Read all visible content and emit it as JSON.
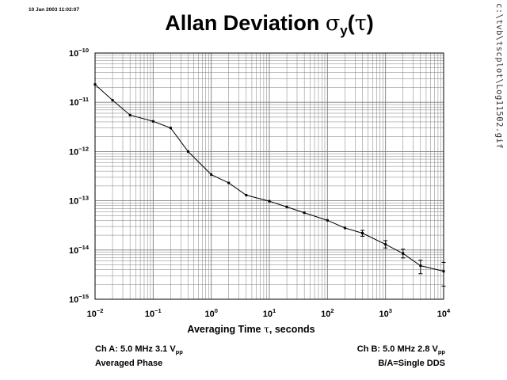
{
  "header": {
    "timestamp": "10 Jan 2003 11:02:07",
    "side_path": "c:\\tvb\\tscplot\\Log11502.gif"
  },
  "title": {
    "main": "Allan Deviation ",
    "symbol": "σ",
    "subscript": "y",
    "paren_open": "(",
    "tau": "τ",
    "paren_close": ")"
  },
  "chart_data": {
    "type": "line",
    "title": "Allan Deviation σy(τ)",
    "xlabel": "Averaging Time τ, seconds",
    "ylabel": "",
    "xscale": "log",
    "yscale": "log",
    "xlim": [
      0.01,
      10000
    ],
    "ylim": [
      1e-15,
      1e-10
    ],
    "grid": true,
    "x_ticks": [
      {
        "base": "10",
        "exp": "−2",
        "value": 0.01
      },
      {
        "base": "10",
        "exp": "−1",
        "value": 0.1
      },
      {
        "base": "10",
        "exp": "0",
        "value": 1
      },
      {
        "base": "10",
        "exp": "1",
        "value": 10
      },
      {
        "base": "10",
        "exp": "2",
        "value": 100
      },
      {
        "base": "10",
        "exp": "3",
        "value": 1000
      },
      {
        "base": "10",
        "exp": "4",
        "value": 10000
      }
    ],
    "y_ticks": [
      {
        "base": "10",
        "exp": "−10",
        "value": 1e-10
      },
      {
        "base": "10",
        "exp": "−11",
        "value": 1e-11
      },
      {
        "base": "10",
        "exp": "−12",
        "value": 1e-12
      },
      {
        "base": "10",
        "exp": "−13",
        "value": 1e-13
      },
      {
        "base": "10",
        "exp": "−14",
        "value": 1e-14
      },
      {
        "base": "10",
        "exp": "−15",
        "value": 1e-15
      }
    ],
    "series": [
      {
        "points": [
          {
            "x": 0.01,
            "y": 2.3e-11
          },
          {
            "x": 0.02,
            "y": 1.1e-11
          },
          {
            "x": 0.04,
            "y": 5.5e-12
          },
          {
            "x": 0.1,
            "y": 4.1e-12
          },
          {
            "x": 0.2,
            "y": 3e-12
          },
          {
            "x": 0.4,
            "y": 1e-12
          },
          {
            "x": 1,
            "y": 3.4e-13
          },
          {
            "x": 2,
            "y": 2.3e-13
          },
          {
            "x": 4,
            "y": 1.3e-13
          },
          {
            "x": 10,
            "y": 9.8e-14
          },
          {
            "x": 20,
            "y": 7.5e-14
          },
          {
            "x": 40,
            "y": 5.7e-14
          },
          {
            "x": 100,
            "y": 4e-14
          },
          {
            "x": 200,
            "y": 2.8e-14
          },
          {
            "x": 400,
            "y": 2.2e-14,
            "err": [
              1.9e-14,
              2.5e-14
            ]
          },
          {
            "x": 1000,
            "y": 1.3e-14,
            "err": [
              1.1e-14,
              1.55e-14
            ]
          },
          {
            "x": 2000,
            "y": 8.5e-15,
            "err": [
              6.9e-15,
              1.04e-14
            ]
          },
          {
            "x": 4000,
            "y": 4.8e-15,
            "err": [
              3.3e-15,
              6.2e-15
            ]
          },
          {
            "x": 10000,
            "y": 3.7e-15,
            "err": [
              1.85e-15,
              5.6e-15
            ]
          }
        ]
      }
    ]
  },
  "xlabel": {
    "text": "Averaging Time ",
    "tau": "τ",
    "suffix": ", seconds"
  },
  "info_left": {
    "line1_prefix": "Ch A: 5.0 MHz 3.1 V",
    "line1_sub": "pp",
    "line2": "Averaged Phase"
  },
  "info_right": {
    "line1_prefix": "Ch B: 5.0 MHz 2.8 V",
    "line1_sub": "pp",
    "line2": "B/A=Single DDS"
  }
}
